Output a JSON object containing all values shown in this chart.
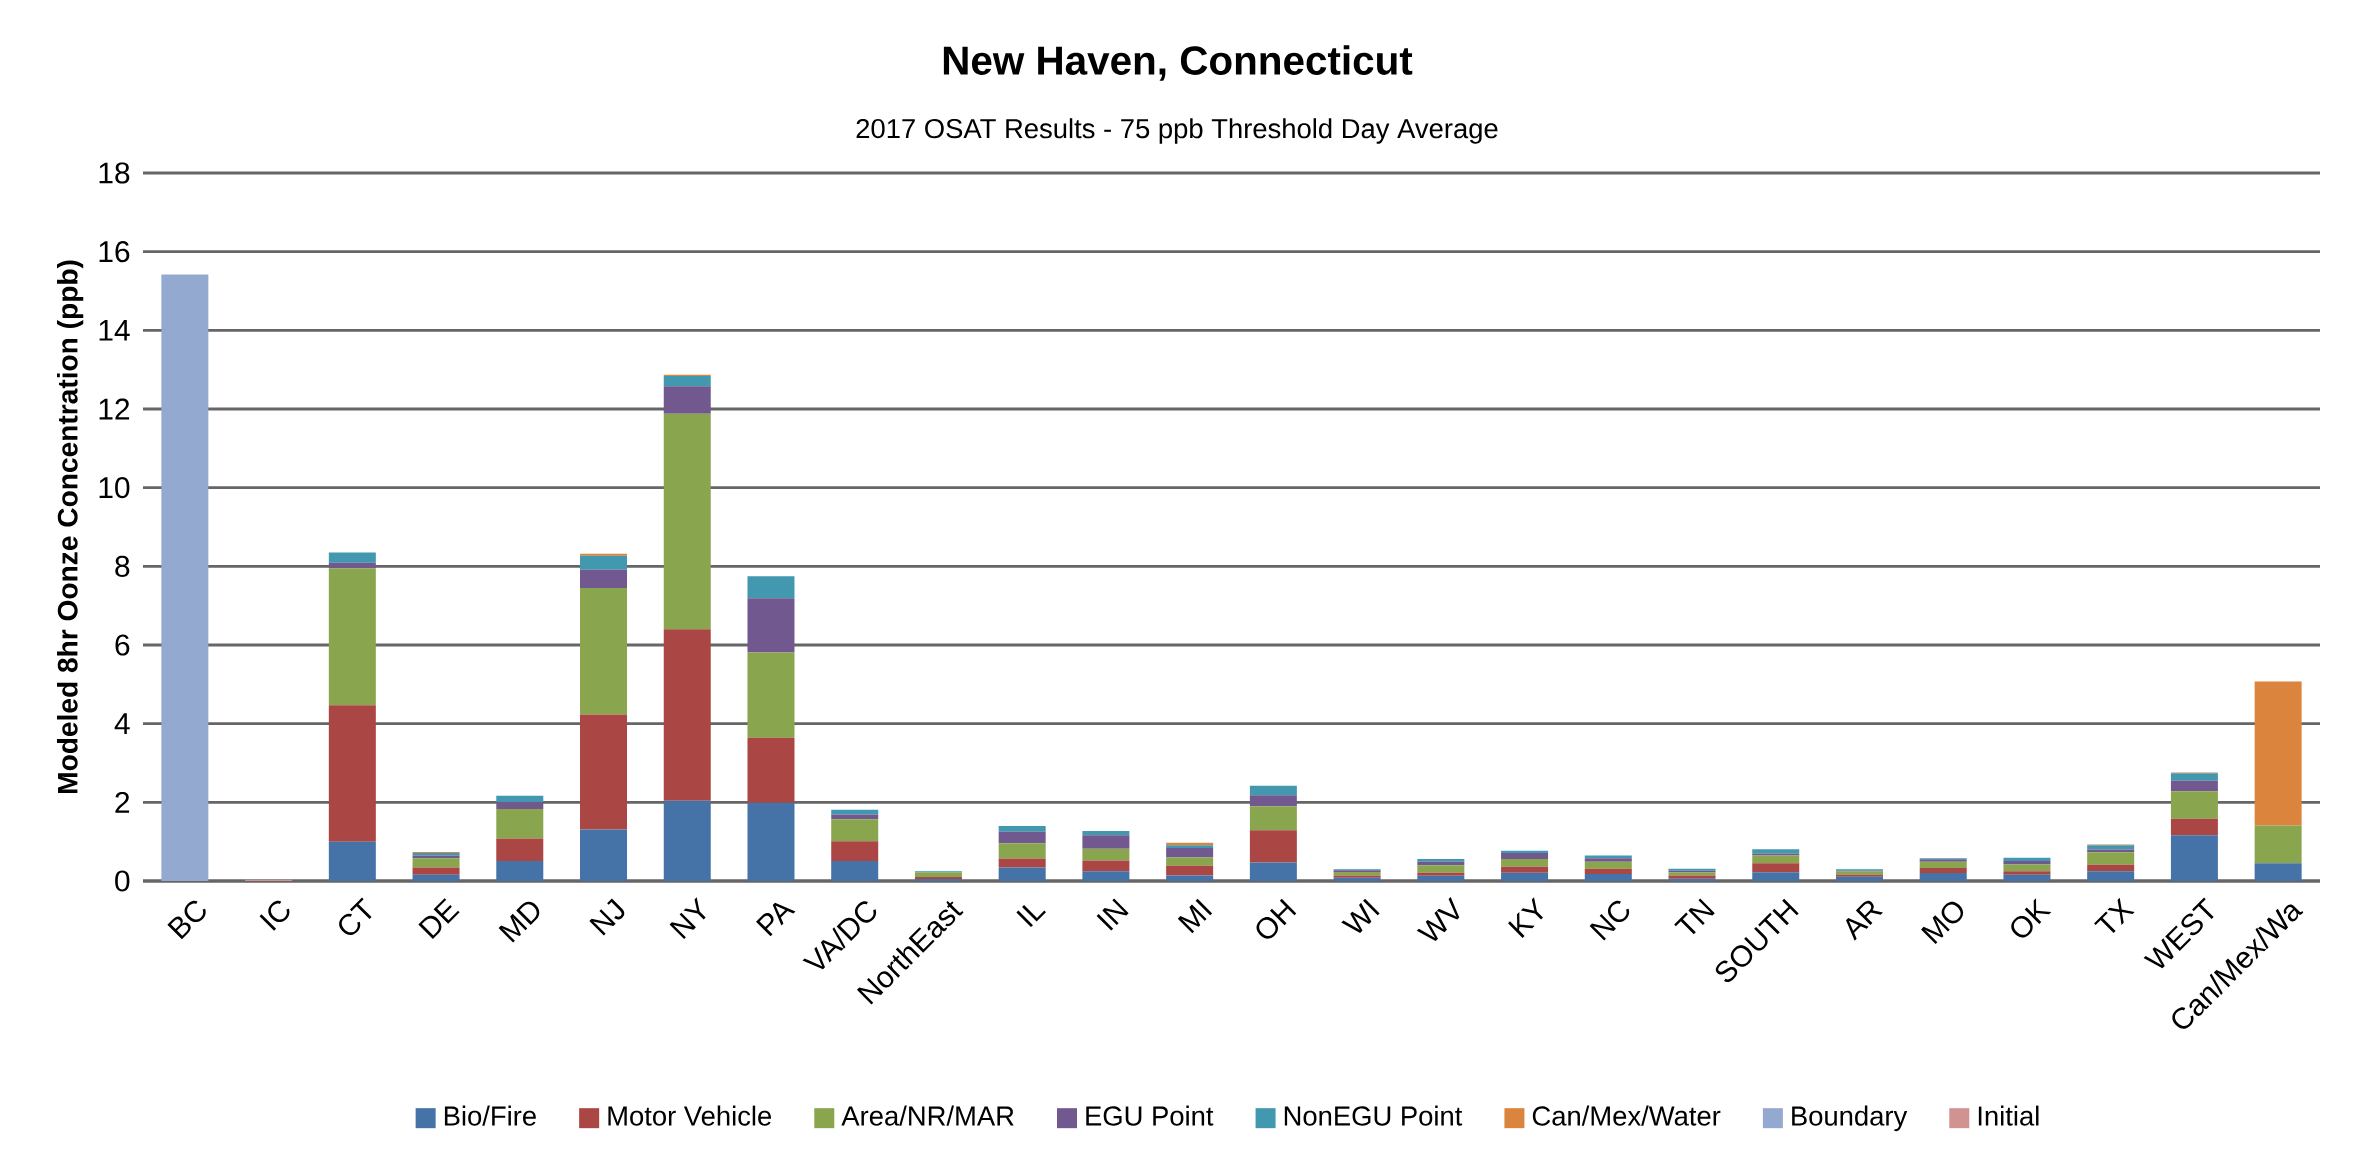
{
  "chart_data": {
    "type": "bar",
    "stacked": true,
    "title": "New Haven, Connecticut",
    "subtitle": "2017 OSAT Results - 75 ppb Threshold Day Average",
    "ylabel": "Modeled 8hr Oonze Concentration (ppb)",
    "categories": [
      "BC",
      "IC",
      "CT",
      "DE",
      "MD",
      "NJ",
      "NY",
      "PA",
      "VA/DC",
      "NorthEast",
      "IL",
      "IN",
      "MI",
      "OH",
      "WI",
      "WV",
      "KY",
      "NC",
      "TN",
      "SOUTH",
      "AR",
      "MO",
      "OK",
      "TX",
      "WEST",
      "Can/Mex/Wa"
    ],
    "series": [
      {
        "name": "Bio/Fire",
        "color": "#4572a7",
        "values": [
          null,
          null,
          1.0,
          0.16,
          0.51,
          1.31,
          2.04,
          1.99,
          0.51,
          0.05,
          0.34,
          0.25,
          0.14,
          0.47,
          0.08,
          0.13,
          0.21,
          0.18,
          0.06,
          0.22,
          0.11,
          0.2,
          0.16,
          0.25,
          1.16,
          0.45
        ]
      },
      {
        "name": "Motor Vehicle",
        "color": "#aa4643",
        "values": [
          null,
          null,
          3.47,
          0.18,
          0.57,
          2.92,
          4.36,
          1.65,
          0.5,
          0.05,
          0.23,
          0.27,
          0.25,
          0.82,
          0.06,
          0.08,
          0.15,
          0.13,
          0.08,
          0.23,
          0.05,
          0.13,
          0.09,
          0.16,
          0.42,
          null
        ]
      },
      {
        "name": "Area/NR/MAR",
        "color": "#89a54e",
        "values": [
          null,
          null,
          3.48,
          0.24,
          0.75,
          3.22,
          5.48,
          2.17,
          0.56,
          0.12,
          0.39,
          0.3,
          0.21,
          0.61,
          0.09,
          0.19,
          0.2,
          0.18,
          0.08,
          0.2,
          0.08,
          0.16,
          0.17,
          0.32,
          0.7,
          0.96
        ]
      },
      {
        "name": "EGU Point",
        "color": "#71588f",
        "values": [
          null,
          null,
          0.14,
          0.06,
          0.18,
          0.46,
          0.7,
          1.38,
          0.12,
          null,
          0.29,
          0.34,
          0.24,
          0.28,
          0.04,
          0.09,
          0.15,
          0.09,
          0.04,
          0.05,
          0.02,
          0.06,
          0.09,
          0.07,
          0.27,
          null
        ]
      },
      {
        "name": "NonEGU Point",
        "color": "#4198af",
        "values": [
          null,
          null,
          0.26,
          0.07,
          0.16,
          0.36,
          0.26,
          0.56,
          0.12,
          0.03,
          0.15,
          0.11,
          0.07,
          0.24,
          0.03,
          0.07,
          0.06,
          0.07,
          0.05,
          0.11,
          0.04,
          0.03,
          0.08,
          0.11,
          0.19,
          null
        ]
      },
      {
        "name": "Can/Mex/Water",
        "color": "#db843d",
        "values": [
          null,
          null,
          null,
          0.03,
          null,
          0.05,
          0.03,
          null,
          null,
          null,
          null,
          null,
          0.06,
          null,
          null,
          null,
          null,
          null,
          null,
          null,
          null,
          null,
          null,
          0.02,
          0.02,
          3.66
        ]
      },
      {
        "name": "Boundary",
        "color": "#93a9cf",
        "values": [
          15.42,
          null,
          null,
          null,
          null,
          null,
          null,
          null,
          null,
          null,
          null,
          null,
          null,
          null,
          null,
          null,
          null,
          null,
          null,
          null,
          null,
          null,
          null,
          null,
          null,
          null
        ]
      },
      {
        "name": "Initial",
        "color": "#d19392",
        "values": [
          null,
          0.03,
          null,
          null,
          null,
          null,
          null,
          null,
          null,
          null,
          null,
          null,
          null,
          null,
          null,
          null,
          null,
          null,
          null,
          null,
          null,
          null,
          null,
          null,
          null,
          null
        ]
      }
    ],
    "ylim": [
      0,
      18
    ],
    "yticks": [
      0,
      2,
      4,
      6,
      8,
      10,
      12,
      14,
      16,
      18
    ],
    "grid": "y",
    "legend": "bottom"
  }
}
